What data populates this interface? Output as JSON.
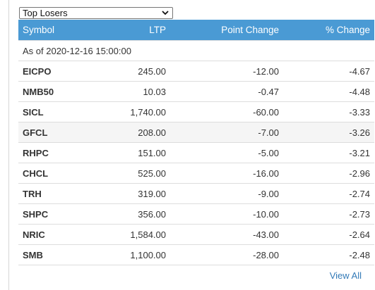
{
  "filter": {
    "selected": "Top Losers"
  },
  "table": {
    "headers": [
      "Symbol",
      "LTP",
      "Point Change",
      "% Change"
    ],
    "as_of": "As of 2020-12-16 15:00:00",
    "rows": [
      {
        "symbol": "EICPO",
        "ltp": "245.00",
        "point_change": "-12.00",
        "pct_change": "-4.67"
      },
      {
        "symbol": "NMB50",
        "ltp": "10.03",
        "point_change": "-0.47",
        "pct_change": "-4.48"
      },
      {
        "symbol": "SICL",
        "ltp": "1,740.00",
        "point_change": "-60.00",
        "pct_change": "-3.33"
      },
      {
        "symbol": "GFCL",
        "ltp": "208.00",
        "point_change": "-7.00",
        "pct_change": "-3.26"
      },
      {
        "symbol": "RHPC",
        "ltp": "151.00",
        "point_change": "-5.00",
        "pct_change": "-3.21"
      },
      {
        "symbol": "CHCL",
        "ltp": "525.00",
        "point_change": "-16.00",
        "pct_change": "-2.96"
      },
      {
        "symbol": "TRH",
        "ltp": "319.00",
        "point_change": "-9.00",
        "pct_change": "-2.74"
      },
      {
        "symbol": "SHPC",
        "ltp": "356.00",
        "point_change": "-10.00",
        "pct_change": "-2.73"
      },
      {
        "symbol": "NRIC",
        "ltp": "1,584.00",
        "point_change": "-43.00",
        "pct_change": "-2.64"
      },
      {
        "symbol": "SMB",
        "ltp": "1,100.00",
        "point_change": "-28.00",
        "pct_change": "-2.48"
      }
    ]
  },
  "footer": {
    "view_all_label": "View All"
  },
  "colors": {
    "header_bg": "#4a9ad4",
    "link": "#337ab7",
    "hover_row": "#f5f5f5"
  },
  "icons": {
    "select_arrow": "chevron-down-icon"
  }
}
